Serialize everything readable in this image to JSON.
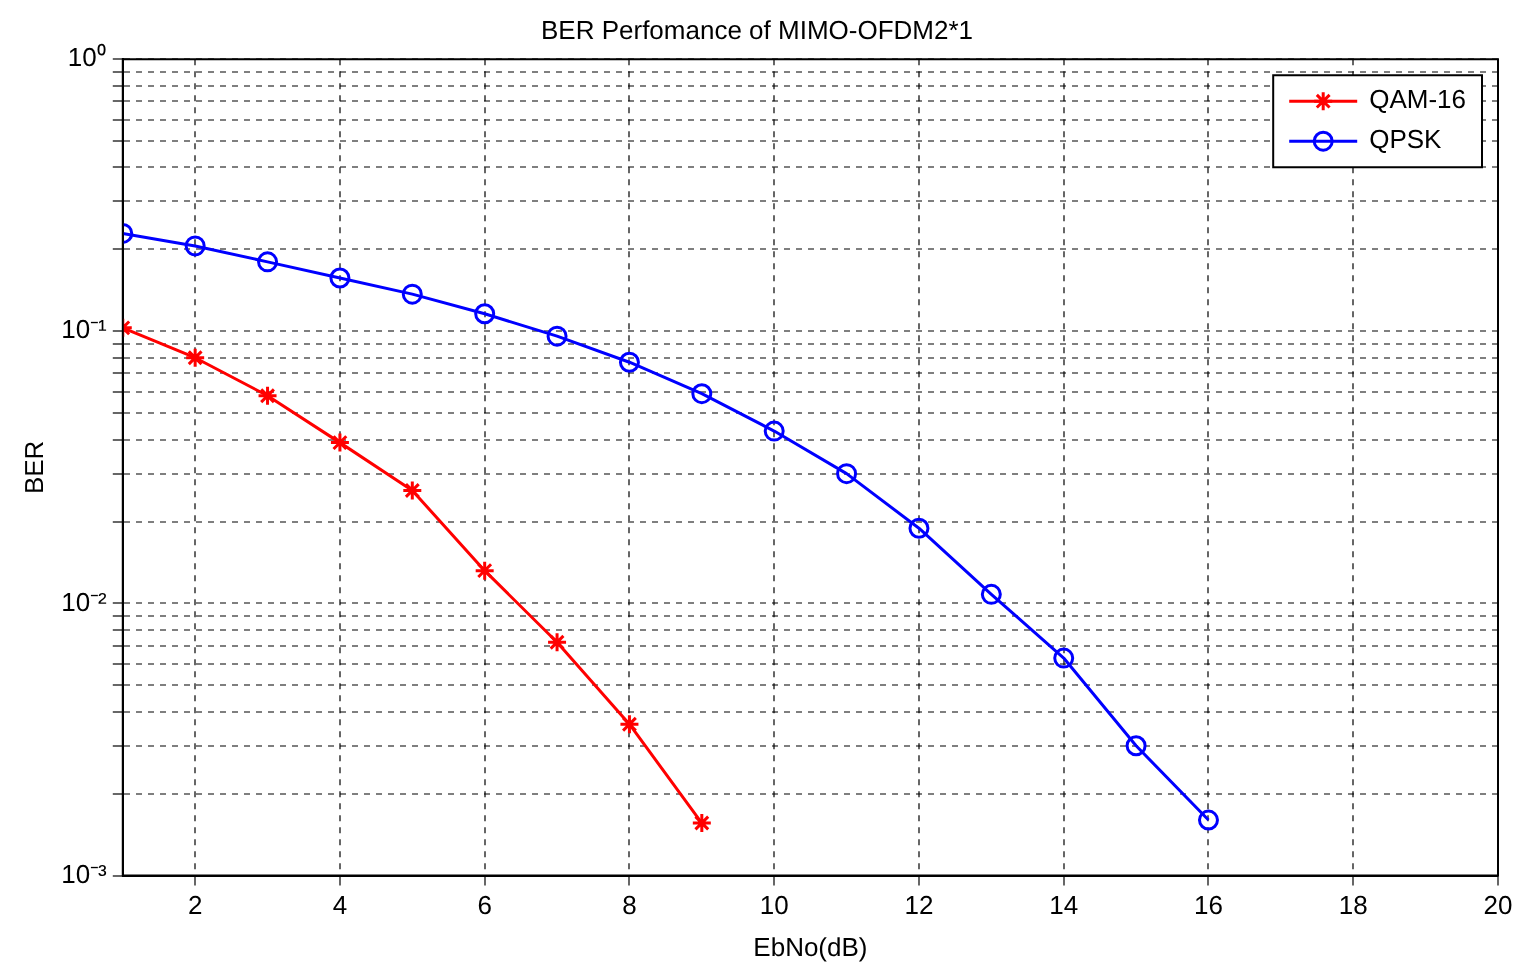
{
  "chart_data": {
    "type": "line",
    "title": "BER Perfomance of MIMO-OFDM2*1",
    "xlabel": "EbNo(dB)",
    "ylabel": "BER",
    "log": "y",
    "grid": true,
    "legend": "top right",
    "line_style": "solid",
    "xlim": [
      1,
      20
    ],
    "xticks": [
      2,
      4,
      6,
      8,
      10,
      12,
      14,
      16,
      18,
      20
    ],
    "ylim": [
      0.001,
      1
    ],
    "yticks": [
      {
        "value": 0.001,
        "label": "10⁻³"
      },
      {
        "value": 0.002,
        "label": null
      },
      {
        "value": 0.003,
        "label": null
      },
      {
        "value": 0.004,
        "label": null
      },
      {
        "value": 0.005,
        "label": null
      },
      {
        "value": 0.006,
        "label": null
      },
      {
        "value": 0.007,
        "label": null
      },
      {
        "value": 0.008,
        "label": null
      },
      {
        "value": 0.009,
        "label": null
      },
      {
        "value": 0.01,
        "label": "10⁻²"
      },
      {
        "value": 0.02,
        "label": null
      },
      {
        "value": 0.03,
        "label": null
      },
      {
        "value": 0.04,
        "label": null
      },
      {
        "value": 0.05,
        "label": null
      },
      {
        "value": 0.06,
        "label": null
      },
      {
        "value": 0.07,
        "label": null
      },
      {
        "value": 0.08,
        "label": null
      },
      {
        "value": 0.09,
        "label": null
      },
      {
        "value": 0.1,
        "label": "10⁻¹"
      },
      {
        "value": 0.2,
        "label": null
      },
      {
        "value": 0.3,
        "label": null
      },
      {
        "value": 0.4,
        "label": null
      },
      {
        "value": 0.5,
        "label": null
      },
      {
        "value": 0.6,
        "label": null
      },
      {
        "value": 0.7,
        "label": null
      },
      {
        "value": 0.8,
        "label": null
      },
      {
        "value": 0.9,
        "label": null
      },
      {
        "value": 1,
        "label": "10⁰"
      }
    ],
    "series": [
      {
        "name": "QAM-16",
        "color": "#ff0000",
        "marker": "cross",
        "x": [
          1,
          2,
          3,
          4,
          5,
          6,
          7,
          8,
          9
        ],
        "values": [
          0.103,
          0.08,
          0.058,
          0.039,
          0.026,
          0.0132,
          0.0072,
          0.0036,
          0.00156
        ]
      },
      {
        "name": "QPSK",
        "color": "#0000ff",
        "marker": "circle",
        "x": [
          1,
          2,
          3,
          4,
          5,
          6,
          7,
          8,
          9,
          10,
          11,
          12,
          13,
          14,
          15,
          16
        ],
        "values": [
          0.229,
          0.206,
          0.18,
          0.157,
          0.137,
          0.116,
          0.096,
          0.077,
          0.059,
          0.043,
          0.03,
          0.0189,
          0.0108,
          0.0063,
          0.003,
          0.0016
        ]
      }
    ]
  }
}
